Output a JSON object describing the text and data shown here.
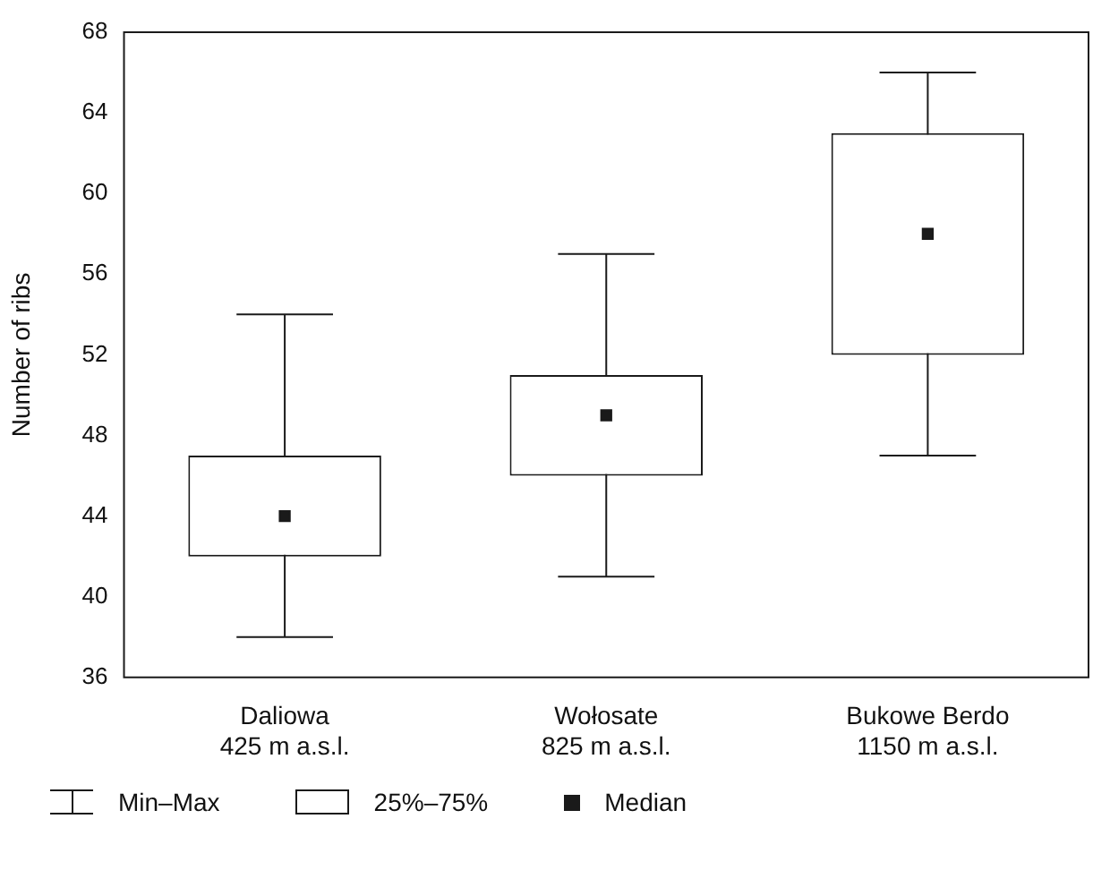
{
  "chart_data": {
    "type": "box",
    "ylabel": "Number of ribs",
    "categories": [
      "Daliowa\n425 m a.s.l.",
      "Wołosate\n825 m a.s.l.",
      "Bukowe Berdo\n1150 m a.s.l."
    ],
    "boxes": [
      {
        "low": 38,
        "q1": 42,
        "median": 44,
        "q3": 47,
        "high": 54
      },
      {
        "low": 41,
        "q1": 46,
        "median": 49,
        "q3": 51,
        "high": 57
      },
      {
        "low": 47,
        "q1": 52,
        "median": 58,
        "q3": 63,
        "high": 66
      }
    ],
    "color": "#1a1a1a",
    "marker": "square",
    "ylim": [
      36,
      68
    ],
    "yticks": [
      36,
      40,
      44,
      48,
      52,
      56,
      60,
      64,
      68
    ],
    "grid": false,
    "annotations": [
      "Min–Max",
      "25%–75%",
      "Median"
    ]
  }
}
